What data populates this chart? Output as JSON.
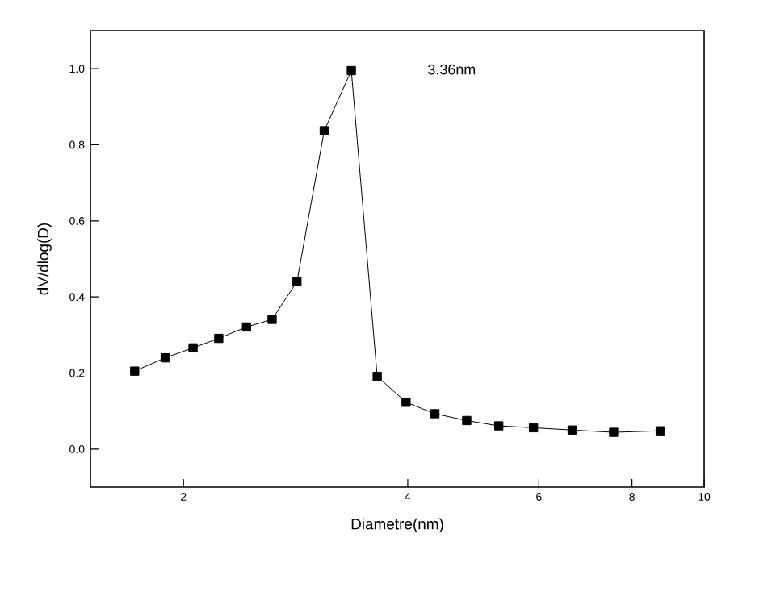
{
  "chart_data": {
    "type": "line",
    "xlabel": "Diametre(nm)",
    "ylabel": "dV/dlog(D)",
    "log": "x",
    "marker": "square",
    "line_style": "solid",
    "xlim": [
      1.5,
      10
    ],
    "xticks": [
      2,
      4,
      6,
      8,
      10
    ],
    "ylim": [
      -0.1,
      1.1
    ],
    "yticks": [
      {
        "value": 0,
        "label": "0.0"
      },
      {
        "value": 0.2,
        "label": "0.2"
      },
      {
        "value": 0.4,
        "label": "0.4"
      },
      {
        "value": 0.6,
        "label": "0.6"
      },
      {
        "value": 0.8,
        "label": "0.8"
      },
      {
        "value": 1.0,
        "label": "1.0"
      }
    ],
    "annotations": [
      "3.36nm"
    ],
    "series": [
      {
        "color": "#000000",
        "x": [
          1.72,
          1.89,
          2.06,
          2.23,
          2.43,
          2.63,
          2.84,
          3.09,
          3.36,
          3.64,
          3.98,
          4.35,
          4.8,
          5.3,
          5.9,
          6.65,
          7.56,
          8.73
        ],
        "values": [
          0.205,
          0.24,
          0.266,
          0.291,
          0.321,
          0.341,
          0.44,
          0.837,
          0.995,
          0.191,
          0.123,
          0.093,
          0.075,
          0.061,
          0.056,
          0.05,
          0.044,
          0.048
        ]
      }
    ]
  }
}
